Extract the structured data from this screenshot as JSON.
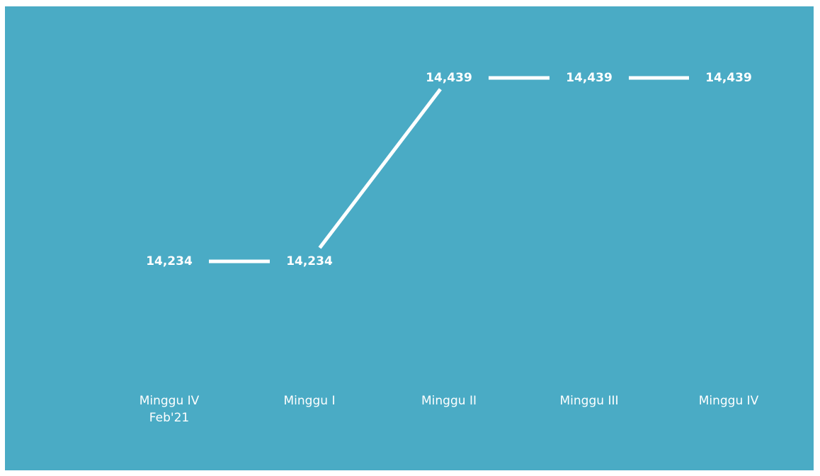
{
  "chart_data": {
    "type": "line",
    "categories": [
      [
        "Minggu IV",
        "Feb'21"
      ],
      [
        "Minggu I"
      ],
      [
        "Minggu II"
      ],
      [
        "Minggu III"
      ],
      [
        "Minggu IV"
      ]
    ],
    "values": [
      14234,
      14234,
      14439,
      14439,
      14439
    ],
    "value_labels": [
      "14,234",
      "14,234",
      "14,439",
      "14,439",
      "14,439"
    ],
    "title": "",
    "xlabel": "",
    "ylabel": "",
    "grid": false,
    "legend": "none",
    "drop_lines": true,
    "colors": {
      "background": "#4aabc5",
      "line": "#ffffff",
      "text": "#ffffff"
    }
  }
}
